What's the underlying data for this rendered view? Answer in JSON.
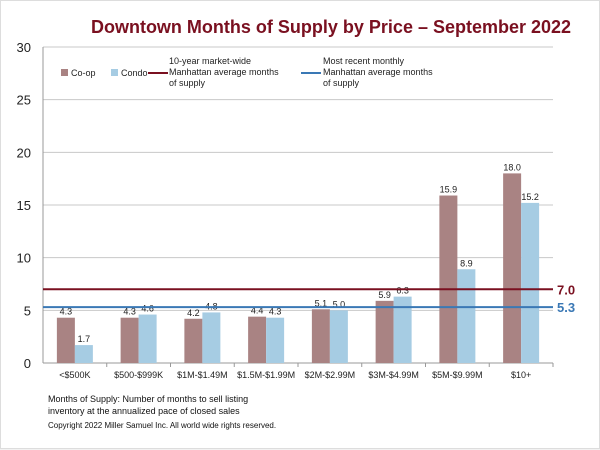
{
  "chart_data": {
    "type": "bar",
    "title": "Downtown Months of Supply by Price – September 2022",
    "categories": [
      "<$500K",
      "$500-$999K",
      "$1M-$1.49M",
      "$1.5M-$1.99M",
      "$2M-$2.99M",
      "$3M-$4.99M",
      "$5M-$9.99M",
      "$10+"
    ],
    "series": [
      {
        "name": "Co-op",
        "color": "#a98383",
        "values": [
          4.3,
          4.3,
          4.2,
          4.4,
          5.1,
          5.9,
          15.9,
          18.0
        ]
      },
      {
        "name": "Condo",
        "color": "#a6cce3",
        "values": [
          1.7,
          4.6,
          4.8,
          4.3,
          5.0,
          6.3,
          8.9,
          15.2
        ]
      }
    ],
    "ylim": [
      0,
      30
    ],
    "yticks": [
      0,
      5,
      10,
      15,
      20,
      25,
      30
    ],
    "grid": true,
    "reference_lines": [
      {
        "label": "10-year market-wide Manhattan average months of supply",
        "value": 7.0,
        "value_label": "7.0",
        "color": "#7a1020"
      },
      {
        "label": "Most recent monthly Manhattan average months of supply",
        "value": 5.3,
        "value_label": "5.3",
        "color": "#3a78b5"
      }
    ],
    "legend": "top-left"
  },
  "footnote": "Months of Supply: Number of months to sell listing inventory at the annualized pace of closed sales",
  "footnote_lines": [
    "Months of Supply: Number of months to sell listing",
    "inventory at the annualized pace of closed sales"
  ],
  "copyright": "Copyright 2022 Miller Samuel Inc.  All world wide rights reserved."
}
